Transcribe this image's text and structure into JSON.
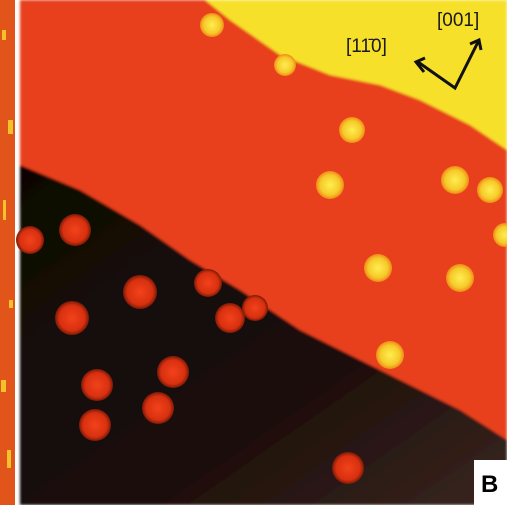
{
  "image": {
    "direction_labels": [
      "[001]",
      "[11̄0]"
    ],
    "panel_label": "B"
  }
}
